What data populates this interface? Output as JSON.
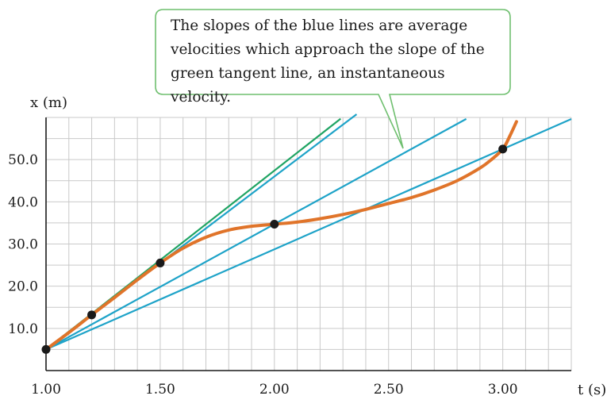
{
  "annotation": {
    "lines": [
      "The slopes of the blue lines are average",
      "velocities which approach the slope of the",
      "green tangent line, an instantaneous velocity."
    ]
  },
  "colors": {
    "curve": "#e0742a",
    "blue_lines": "#1ea3c8",
    "tangent_line": "#1fa463",
    "grid": "#c9c9c9",
    "axis": "#1a1a1a",
    "points": "#1a1a1a",
    "callout_border": "#6fbf6f"
  },
  "chart_data": {
    "type": "line",
    "xlabel": "t (s)",
    "ylabel": "x (m)",
    "xlim": [
      1.0,
      3.3
    ],
    "ylim": [
      0,
      60
    ],
    "xticks": [
      1.0,
      1.5,
      2.0,
      2.5,
      3.0
    ],
    "xtick_labels": [
      "1.00",
      "1.50",
      "2.00",
      "2.50",
      "3.00"
    ],
    "yticks": [
      10,
      20,
      30,
      40,
      50
    ],
    "ytick_labels": [
      "10.0",
      "20.0",
      "30.0",
      "40.0",
      "50.0"
    ],
    "grid": true,
    "curve": {
      "x": [
        1.0,
        1.1,
        1.2,
        1.3,
        1.4,
        1.5,
        1.6,
        1.7,
        1.8,
        1.9,
        2.0,
        2.1,
        2.2,
        2.3,
        2.4,
        2.5,
        2.6,
        2.7,
        2.8,
        2.9,
        2.95,
        3.0,
        3.03,
        3.06
      ],
      "y": [
        5.0,
        9.0,
        13.2,
        17.3,
        21.5,
        25.5,
        29.0,
        31.6,
        33.3,
        34.2,
        34.7,
        35.2,
        36.0,
        37.0,
        38.2,
        39.6,
        41.0,
        42.8,
        45.0,
        48.0,
        50.0,
        52.5,
        55.5,
        59.0
      ]
    },
    "points": [
      {
        "x": 1.0,
        "y": 5.0
      },
      {
        "x": 1.2,
        "y": 13.2
      },
      {
        "x": 1.5,
        "y": 25.5
      },
      {
        "x": 2.0,
        "y": 34.7
      },
      {
        "x": 3.0,
        "y": 52.5
      }
    ],
    "blue_lines": [
      {
        "through": [
          [
            1.0,
            5.0
          ],
          [
            1.5,
            25.5
          ]
        ],
        "x_end": 2.36
      },
      {
        "through": [
          [
            1.0,
            5.0
          ],
          [
            2.0,
            34.7
          ]
        ],
        "x_end": 2.84
      },
      {
        "through": [
          [
            1.0,
            5.0
          ],
          [
            3.0,
            52.5
          ]
        ],
        "x_end": 3.3
      }
    ],
    "tangent_line": {
      "through": [
        [
          1.0,
          5.0
        ],
        [
          1.5,
          26.2
        ]
      ],
      "x_end": 2.29
    }
  }
}
